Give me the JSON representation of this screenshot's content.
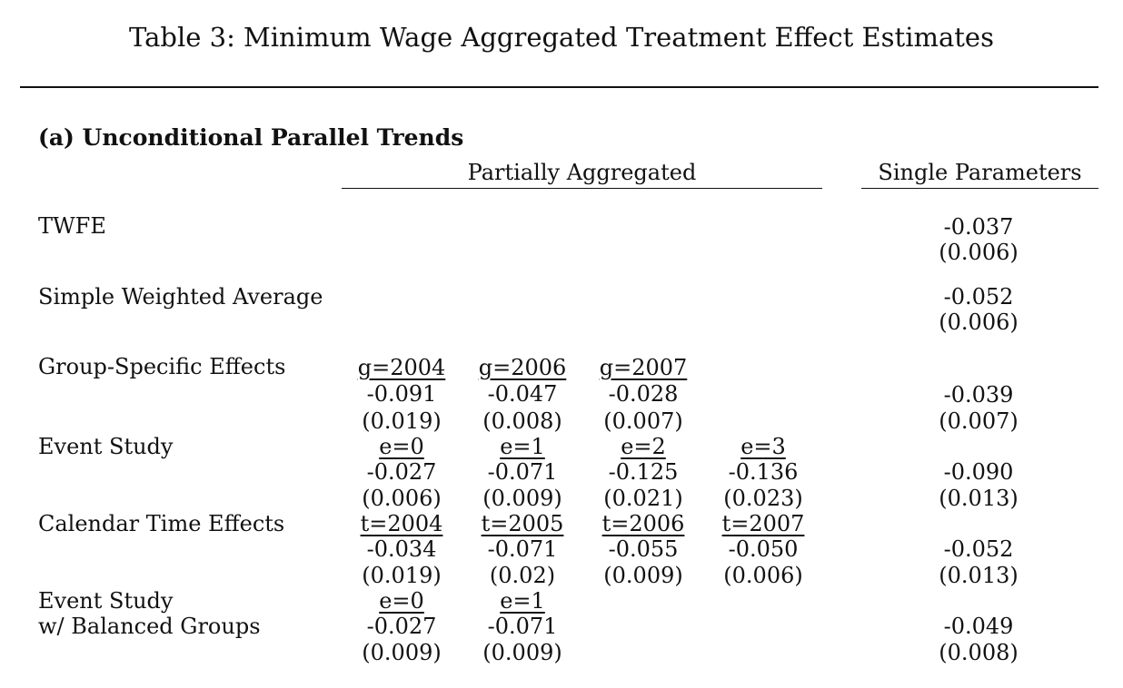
{
  "title": "Table 3: Minimum Wage Aggregated Treatment Effect Estimates",
  "panel_title": "(a) Unconditional Parallel Trends",
  "headers": {
    "partially_aggregated": "Partially Aggregated",
    "single_parameters": "Single Parameters"
  },
  "rows": [
    {
      "label": "TWFE",
      "groups": [],
      "single": {
        "estimate": "-0.037",
        "se": "(0.006)"
      }
    },
    {
      "label": "Simple Weighted Average",
      "groups": [],
      "single": {
        "estimate": "-0.052",
        "se": "(0.006)"
      }
    },
    {
      "label": "Group-Specific Effects",
      "groups": [
        {
          "header": "g=2004",
          "estimate": "-0.091",
          "se": "(0.019)"
        },
        {
          "header": "g=2006",
          "estimate": "-0.047",
          "se": "(0.008)"
        },
        {
          "header": "g=2007",
          "estimate": "-0.028",
          "se": "(0.007)"
        }
      ],
      "single": {
        "estimate": "-0.039",
        "se": "(0.007)"
      }
    },
    {
      "label": "Event Study",
      "groups": [
        {
          "header": "e=0",
          "estimate": "-0.027",
          "se": "(0.006)"
        },
        {
          "header": "e=1",
          "estimate": "-0.071",
          "se": "(0.009)"
        },
        {
          "header": "e=2",
          "estimate": "-0.125",
          "se": "(0.021)"
        },
        {
          "header": "e=3",
          "estimate": "-0.136",
          "se": "(0.023)"
        }
      ],
      "single": {
        "estimate": "-0.090",
        "se": "(0.013)"
      }
    },
    {
      "label": "Calendar Time Effects",
      "groups": [
        {
          "header": "t=2004",
          "estimate": "-0.034",
          "se": "(0.019)"
        },
        {
          "header": "t=2005",
          "estimate": "-0.071",
          "se": "(0.02)"
        },
        {
          "header": "t=2006",
          "estimate": "-0.055",
          "se": "(0.009)"
        },
        {
          "header": "t=2007",
          "estimate": "-0.050",
          "se": "(0.006)"
        }
      ],
      "single": {
        "estimate": "-0.052",
        "se": "(0.013)"
      }
    },
    {
      "label": "Event Study",
      "label2": "w/ Balanced Groups",
      "groups": [
        {
          "header": "e=0",
          "estimate": "-0.027",
          "se": "(0.009)"
        },
        {
          "header": "e=1",
          "estimate": "-0.071",
          "se": "(0.009)"
        }
      ],
      "single": {
        "estimate": "-0.049",
        "se": "(0.008)"
      }
    }
  ]
}
